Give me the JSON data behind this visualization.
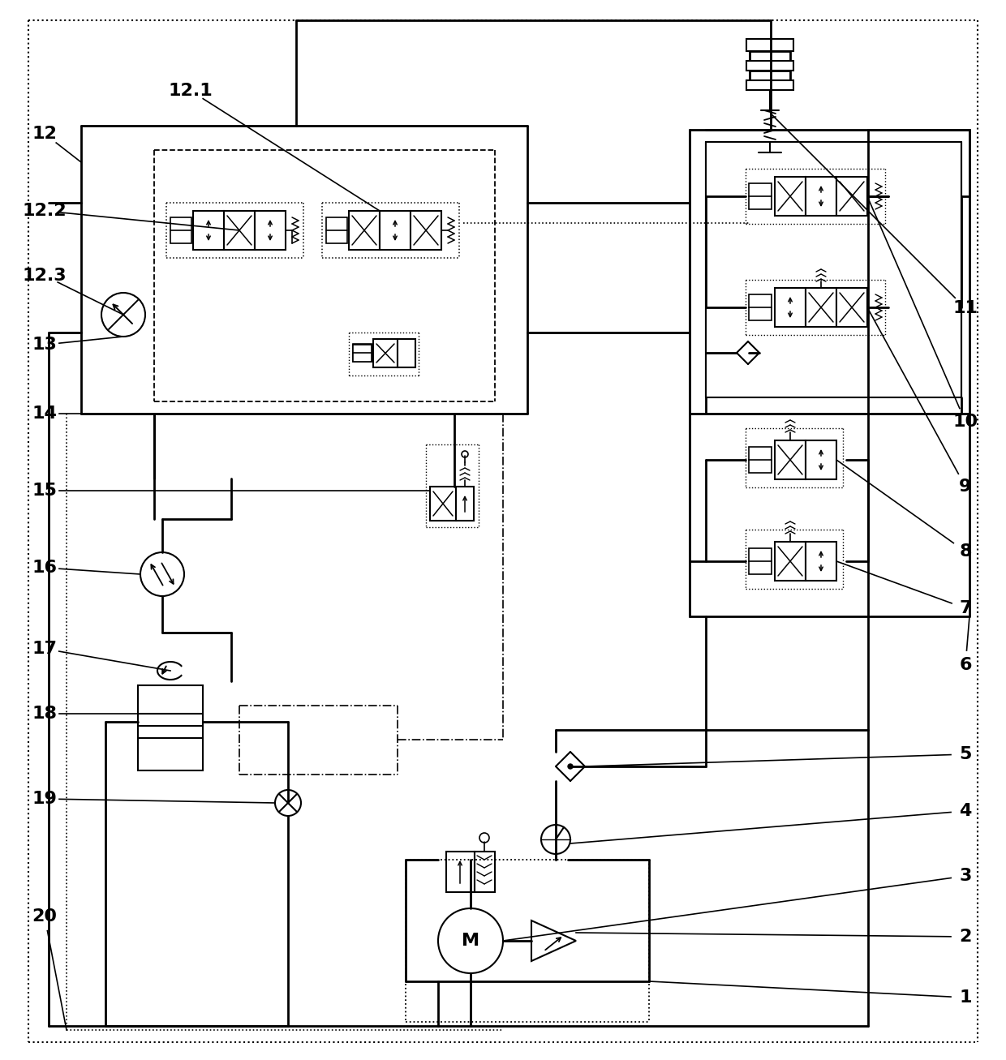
{
  "bg_color": "#ffffff",
  "lw_main": 2.0,
  "lw_med": 1.5,
  "lw_thin": 1.2,
  "figsize": [
    12.4,
    13.07
  ],
  "dpi": 100
}
